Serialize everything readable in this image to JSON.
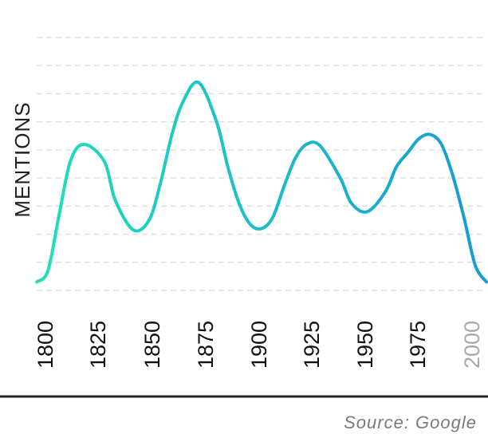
{
  "chart_data": {
    "type": "line",
    "title": "",
    "xlabel": "",
    "ylabel": "MENTIONS",
    "x": [
      1800,
      1805,
      1810,
      1815,
      1821,
      1830,
      1835,
      1843,
      1850,
      1855,
      1860,
      1865,
      1872,
      1880,
      1885,
      1890,
      1895,
      1900,
      1905,
      1910,
      1915,
      1920,
      1926,
      1935,
      1940,
      1947,
      1955,
      1960,
      1965,
      1970,
      1975,
      1980,
      1985,
      1990,
      1995,
      2000
    ],
    "series": [
      {
        "values": [
          0.0,
          0.4,
          2.4,
          4.3,
          4.9,
          4.3,
          2.9,
          1.85,
          2.2,
          3.5,
          5.2,
          6.4,
          7.1,
          5.7,
          4.1,
          2.8,
          2.05,
          1.9,
          2.3,
          3.4,
          4.4,
          4.9,
          4.85,
          3.7,
          2.8,
          2.5,
          3.2,
          4.1,
          4.6,
          5.1,
          5.25,
          4.9,
          3.8,
          2.3,
          0.6,
          0.0
        ]
      }
    ],
    "xticks": [
      "1800",
      "1825",
      "1850",
      "1875",
      "1900",
      "1925",
      "1950",
      "1975",
      "2000"
    ],
    "xlim": [
      1800,
      2000
    ],
    "ylim": [
      -0.3,
      8.7
    ],
    "grid": true,
    "legend": "none",
    "colors": {
      "line_start": "#1fe0b8",
      "line_end": "#1a9ad6",
      "grid": "#dedede",
      "axis": "#222222",
      "tick_text": "#111111",
      "tick_text_muted": "#a8a8a8",
      "source_text": "#7a7a7a"
    }
  },
  "source": "Source: Google"
}
